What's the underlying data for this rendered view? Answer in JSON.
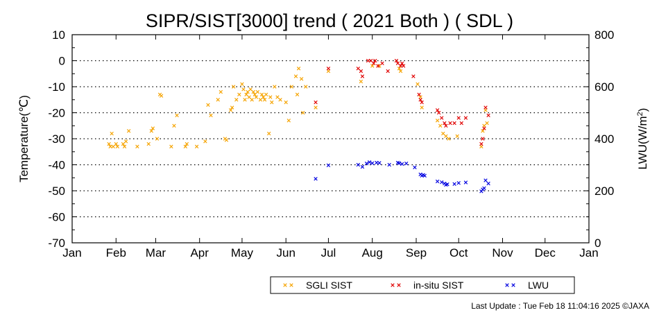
{
  "chart_data": {
    "type": "scatter",
    "title": "SIPR/SIST[3000] trend ( 2021 Both ) ( SDL )",
    "ylabel_left": "Temperature(℃)",
    "ylabel_right_main": "LWU(W/m",
    "ylabel_right_sup": "2",
    "ylabel_right_close": ")",
    "ylim_left": [
      -70,
      10
    ],
    "ylim_right": [
      0,
      800
    ],
    "yticks_left": [
      "10",
      "0",
      "-10",
      "-20",
      "-30",
      "-40",
      "-50",
      "-60",
      "-70"
    ],
    "yticks_right": [
      "800",
      "600",
      "400",
      "200",
      "0"
    ],
    "months": [
      "Jan",
      "Feb",
      "Mar",
      "Apr",
      "May",
      "Jun",
      "Jul",
      "Aug",
      "Sep",
      "Oct",
      "Nov",
      "Dec",
      "Jan"
    ],
    "x_range": [
      "2021-01-01",
      "2022-01-01"
    ],
    "grid": "horizontal dotted",
    "legend_position": "bottom-right",
    "series": [
      {
        "name": "SGLI SIST",
        "axis": "left",
        "color": "#f5a300",
        "points": [
          [
            "2021-01-27",
            -32
          ],
          [
            "2021-01-28",
            -33
          ],
          [
            "2021-01-29",
            -28
          ],
          [
            "2021-01-30",
            -33
          ],
          [
            "2021-02-01",
            -32
          ],
          [
            "2021-02-02",
            -33
          ],
          [
            "2021-02-06",
            -32
          ],
          [
            "2021-02-07",
            -33
          ],
          [
            "2021-02-08",
            -31
          ],
          [
            "2021-02-10",
            -27
          ],
          [
            "2021-02-16",
            -33
          ],
          [
            "2021-02-24",
            -32
          ],
          [
            "2021-02-26",
            -27
          ],
          [
            "2021-02-27",
            -26
          ],
          [
            "2021-03-02",
            -30
          ],
          [
            "2021-03-04",
            -13
          ],
          [
            "2021-03-05",
            -13.5
          ],
          [
            "2021-03-12",
            -33
          ],
          [
            "2021-03-14",
            -25
          ],
          [
            "2021-03-16",
            -21
          ],
          [
            "2021-03-22",
            -33
          ],
          [
            "2021-03-23",
            -32
          ],
          [
            "2021-03-30",
            -33
          ],
          [
            "2021-04-05",
            -31
          ],
          [
            "2021-04-07",
            -17
          ],
          [
            "2021-04-09",
            -21
          ],
          [
            "2021-04-14",
            -15
          ],
          [
            "2021-04-16",
            -12
          ],
          [
            "2021-04-19",
            -30
          ],
          [
            "2021-04-20",
            -30.5
          ],
          [
            "2021-04-23",
            -19
          ],
          [
            "2021-04-24",
            -18
          ],
          [
            "2021-04-25",
            -10
          ],
          [
            "2021-04-27",
            -15
          ],
          [
            "2021-04-29",
            -13
          ],
          [
            "2021-05-01",
            -9
          ],
          [
            "2021-05-02",
            -11
          ],
          [
            "2021-05-03",
            -15
          ],
          [
            "2021-05-04",
            -13
          ],
          [
            "2021-05-05",
            -12
          ],
          [
            "2021-05-06",
            -14
          ],
          [
            "2021-05-07",
            -11
          ],
          [
            "2021-05-08",
            -15
          ],
          [
            "2021-05-09",
            -12
          ],
          [
            "2021-05-10",
            -13
          ],
          [
            "2021-05-11",
            -14
          ],
          [
            "2021-05-12",
            -12
          ],
          [
            "2021-05-14",
            -15
          ],
          [
            "2021-05-15",
            -13
          ],
          [
            "2021-05-16",
            -14
          ],
          [
            "2021-05-17",
            -15
          ],
          [
            "2021-05-18",
            -13
          ],
          [
            "2021-05-20",
            -28
          ],
          [
            "2021-05-21",
            -14
          ],
          [
            "2021-05-22",
            -16
          ],
          [
            "2021-05-24",
            -10
          ],
          [
            "2021-05-26",
            -14
          ],
          [
            "2021-05-28",
            -15
          ],
          [
            "2021-06-01",
            -16
          ],
          [
            "2021-06-03",
            -23
          ],
          [
            "2021-06-05",
            -10
          ],
          [
            "2021-06-08",
            -6
          ],
          [
            "2021-06-09",
            -13
          ],
          [
            "2021-06-10",
            -3
          ],
          [
            "2021-06-12",
            -7
          ],
          [
            "2021-06-13",
            -20
          ],
          [
            "2021-06-15",
            -10
          ],
          [
            "2021-06-22",
            -18
          ],
          [
            "2021-07-01",
            -4
          ],
          [
            "2021-07-24",
            -8
          ],
          [
            "2021-08-01",
            -2
          ],
          [
            "2021-08-06",
            -2
          ],
          [
            "2021-08-20",
            -3
          ],
          [
            "2021-08-21",
            -4
          ],
          [
            "2021-09-02",
            -9
          ],
          [
            "2021-09-04",
            -14
          ],
          [
            "2021-09-05",
            -18
          ],
          [
            "2021-09-16",
            -23
          ],
          [
            "2021-09-18",
            -25
          ],
          [
            "2021-09-20",
            -28
          ],
          [
            "2021-09-22",
            -29
          ],
          [
            "2021-09-24",
            -30
          ],
          [
            "2021-09-30",
            -29
          ],
          [
            "2021-10-17",
            -33
          ],
          [
            "2021-10-18",
            -27
          ],
          [
            "2021-10-19",
            -25
          ],
          [
            "2021-10-20",
            -19
          ],
          [
            "2021-10-21",
            -24
          ]
        ]
      },
      {
        "name": "in-situ SIST",
        "axis": "left",
        "color": "#e00000",
        "points": [
          [
            "2021-06-22",
            -16
          ],
          [
            "2021-07-01",
            -3
          ],
          [
            "2021-07-22",
            -3
          ],
          [
            "2021-07-24",
            -4
          ],
          [
            "2021-07-25",
            -6
          ],
          [
            "2021-07-29",
            0
          ],
          [
            "2021-07-31",
            0
          ],
          [
            "2021-08-02",
            -1
          ],
          [
            "2021-08-03",
            0
          ],
          [
            "2021-08-05",
            -2
          ],
          [
            "2021-08-08",
            -1
          ],
          [
            "2021-08-12",
            -4
          ],
          [
            "2021-08-18",
            0
          ],
          [
            "2021-08-19",
            -1
          ],
          [
            "2021-08-21",
            -2
          ],
          [
            "2021-08-22",
            -1
          ],
          [
            "2021-08-23",
            -2
          ],
          [
            "2021-08-30",
            -6
          ],
          [
            "2021-09-03",
            -13
          ],
          [
            "2021-09-04",
            -15
          ],
          [
            "2021-09-05",
            -16
          ],
          [
            "2021-09-16",
            -19
          ],
          [
            "2021-09-17",
            -20
          ],
          [
            "2021-09-19",
            -22
          ],
          [
            "2021-09-21",
            -24
          ],
          [
            "2021-09-22",
            -25
          ],
          [
            "2021-09-25",
            -24
          ],
          [
            "2021-09-28",
            -24
          ],
          [
            "2021-10-01",
            -22
          ],
          [
            "2021-10-03",
            -24
          ],
          [
            "2021-10-06",
            -22
          ],
          [
            "2021-10-17",
            -32
          ],
          [
            "2021-10-18",
            -30
          ],
          [
            "2021-10-19",
            -26
          ],
          [
            "2021-10-20",
            -18
          ],
          [
            "2021-10-22",
            -21
          ]
        ]
      },
      {
        "name": "LWU",
        "axis": "right",
        "color": "#0000e0",
        "points": [
          [
            "2021-06-22",
            246
          ],
          [
            "2021-07-01",
            298
          ],
          [
            "2021-07-22",
            300
          ],
          [
            "2021-07-25",
            292
          ],
          [
            "2021-07-28",
            305
          ],
          [
            "2021-07-30",
            310
          ],
          [
            "2021-08-01",
            306
          ],
          [
            "2021-08-04",
            308
          ],
          [
            "2021-08-06",
            307
          ],
          [
            "2021-08-13",
            300
          ],
          [
            "2021-08-19",
            308
          ],
          [
            "2021-08-20",
            306
          ],
          [
            "2021-08-22",
            303
          ],
          [
            "2021-08-25",
            305
          ],
          [
            "2021-08-31",
            290
          ],
          [
            "2021-09-04",
            263
          ],
          [
            "2021-09-05",
            258
          ],
          [
            "2021-09-06",
            261
          ],
          [
            "2021-09-07",
            258
          ],
          [
            "2021-09-16",
            236
          ],
          [
            "2021-09-19",
            233
          ],
          [
            "2021-09-21",
            228
          ],
          [
            "2021-09-22",
            223
          ],
          [
            "2021-09-23",
            225
          ],
          [
            "2021-09-28",
            226
          ],
          [
            "2021-10-01",
            230
          ],
          [
            "2021-10-06",
            232
          ],
          [
            "2021-10-17",
            198
          ],
          [
            "2021-10-18",
            205
          ],
          [
            "2021-10-19",
            210
          ],
          [
            "2021-10-20",
            240
          ],
          [
            "2021-10-22",
            228
          ]
        ]
      }
    ]
  },
  "legend": {
    "items": [
      {
        "label": "SGLI SIST",
        "color": "#f5a300"
      },
      {
        "label": "in-situ SIST",
        "color": "#e00000"
      },
      {
        "label": "LWU",
        "color": "#0000e0"
      }
    ]
  },
  "footer": {
    "text": "Last Update : Tue Feb 18 11:04:16 2025  ©JAXA"
  }
}
